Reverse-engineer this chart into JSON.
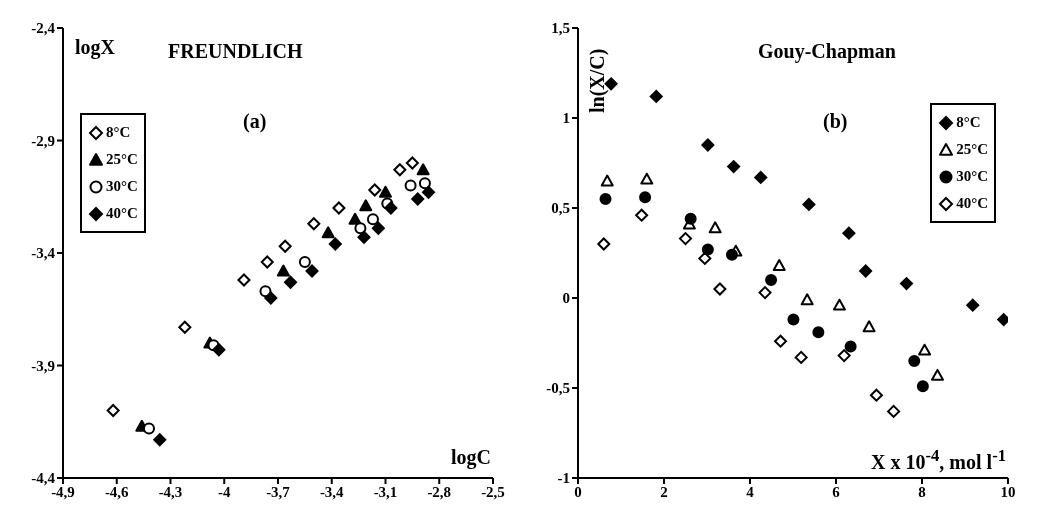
{
  "chart_data": [
    {
      "type": "scatter",
      "title": "FREUNDLICH",
      "xlabel": "logC",
      "ylabel": "logX",
      "annotations": [
        "(a)"
      ],
      "legend": "top left",
      "xlim": [
        -4.9,
        -2.5
      ],
      "xticks": [
        {
          "value": -4.9,
          "label": "-4,9"
        },
        {
          "value": -4.6,
          "label": "-4,6"
        },
        {
          "value": -4.3,
          "label": "-4,3"
        },
        -4,
        {
          "value": -3.7,
          "label": "-3,7"
        },
        {
          "value": -3.4,
          "label": "-3,4"
        },
        {
          "value": -3.1,
          "label": "-3,1"
        },
        {
          "value": -2.8,
          "label": "-2,8"
        },
        {
          "value": -2.5,
          "label": "-2,5"
        }
      ],
      "ylim": [
        -4.4,
        -2.4
      ],
      "yticks": [
        {
          "value": -4.4,
          "label": "-4,4"
        },
        {
          "value": -3.9,
          "label": "-3,9"
        },
        {
          "value": -3.4,
          "label": "-3,4"
        },
        {
          "value": -2.9,
          "label": "-2,9"
        },
        {
          "value": -2.4,
          "label": "-2,4"
        }
      ],
      "series": [
        {
          "name": "8°C",
          "color": "#ffffff",
          "marker": "diamond",
          "x": [
            -4.62,
            -4.22,
            -3.89,
            -3.76,
            -3.66,
            -3.5,
            -3.36,
            -3.16,
            -3.02,
            -2.95
          ],
          "values": [
            -4.1,
            -3.73,
            -3.52,
            -3.44,
            -3.37,
            -3.27,
            -3.2,
            -3.12,
            -3.03,
            -3.0
          ]
        },
        {
          "name": "25°C",
          "color": "#000000",
          "marker": "triangle",
          "x": [
            -4.46,
            -4.08,
            -3.67,
            -3.42,
            -3.27,
            -3.21,
            -3.1,
            -2.89
          ],
          "values": [
            -4.17,
            -3.8,
            -3.48,
            -3.31,
            -3.25,
            -3.19,
            -3.13,
            -3.03
          ]
        },
        {
          "name": "30°C",
          "color": "#ffffff",
          "marker": "circle",
          "x": [
            -4.42,
            -4.06,
            -3.77,
            -3.55,
            -3.24,
            -3.17,
            -3.09,
            -2.96,
            -2.88
          ],
          "values": [
            -4.18,
            -3.81,
            -3.57,
            -3.44,
            -3.29,
            -3.25,
            -3.18,
            -3.1,
            -3.09
          ]
        },
        {
          "name": "40°C",
          "color": "#000000",
          "marker": "diamond",
          "x": [
            -4.36,
            -4.03,
            -3.74,
            -3.63,
            -3.51,
            -3.38,
            -3.22,
            -3.14,
            -3.07,
            -2.92,
            -2.86
          ],
          "values": [
            -4.23,
            -3.83,
            -3.6,
            -3.53,
            -3.48,
            -3.36,
            -3.33,
            -3.29,
            -3.2,
            -3.16,
            -3.13
          ]
        }
      ]
    },
    {
      "type": "scatter",
      "title": "Gouy-Chapman",
      "xlabel": "X x 10$^{-4}$, mol l$^{-1}$",
      "ylabel": "ln(X/C)",
      "annotations": [
        "(b)"
      ],
      "legend": "top right",
      "xlim": [
        0,
        10
      ],
      "xticks": [
        0,
        2,
        4,
        6,
        8,
        10
      ],
      "ylim": [
        -1,
        1.5
      ],
      "yticks": [
        -1,
        {
          "value": -0.5,
          "label": "-0,5"
        },
        0,
        {
          "value": 0.5,
          "label": "0,5"
        },
        1,
        {
          "value": 1.5,
          "label": "1,5"
        }
      ],
      "series": [
        {
          "name": "8°C",
          "color": "#000000",
          "marker": "diamond",
          "x": [
            0.77,
            1.82,
            3.02,
            3.62,
            4.25,
            5.37,
            6.3,
            6.69,
            7.64,
            9.18,
            9.9
          ],
          "values": [
            1.19,
            1.12,
            0.85,
            0.73,
            0.67,
            0.52,
            0.36,
            0.15,
            0.08,
            -0.04,
            -0.12
          ]
        },
        {
          "name": "25°C",
          "color": "#ffffff",
          "marker": "triangle",
          "x": [
            0.68,
            1.6,
            2.59,
            3.19,
            3.67,
            4.68,
            5.33,
            6.08,
            6.77,
            8.06,
            8.36
          ],
          "values": [
            0.65,
            0.66,
            0.41,
            0.39,
            0.26,
            0.18,
            -0.01,
            -0.04,
            -0.16,
            -0.29,
            -0.43
          ]
        },
        {
          "name": "30°C",
          "color": "#000000",
          "marker": "circle",
          "x": [
            0.64,
            1.56,
            2.62,
            3.02,
            3.58,
            4.49,
            5.01,
            5.59,
            6.34,
            7.82,
            8.02
          ],
          "values": [
            0.55,
            0.56,
            0.44,
            0.27,
            0.24,
            0.1,
            -0.12,
            -0.19,
            -0.27,
            -0.35,
            -0.49
          ]
        },
        {
          "name": "40°C",
          "color": "#ffffff",
          "marker": "diamond",
          "x": [
            0.6,
            1.48,
            2.5,
            2.95,
            3.3,
            4.35,
            4.71,
            5.19,
            6.19,
            6.94,
            7.34
          ],
          "values": [
            0.3,
            0.46,
            0.33,
            0.22,
            0.05,
            0.03,
            -0.24,
            -0.33,
            -0.32,
            -0.54,
            -0.63
          ]
        }
      ]
    }
  ]
}
